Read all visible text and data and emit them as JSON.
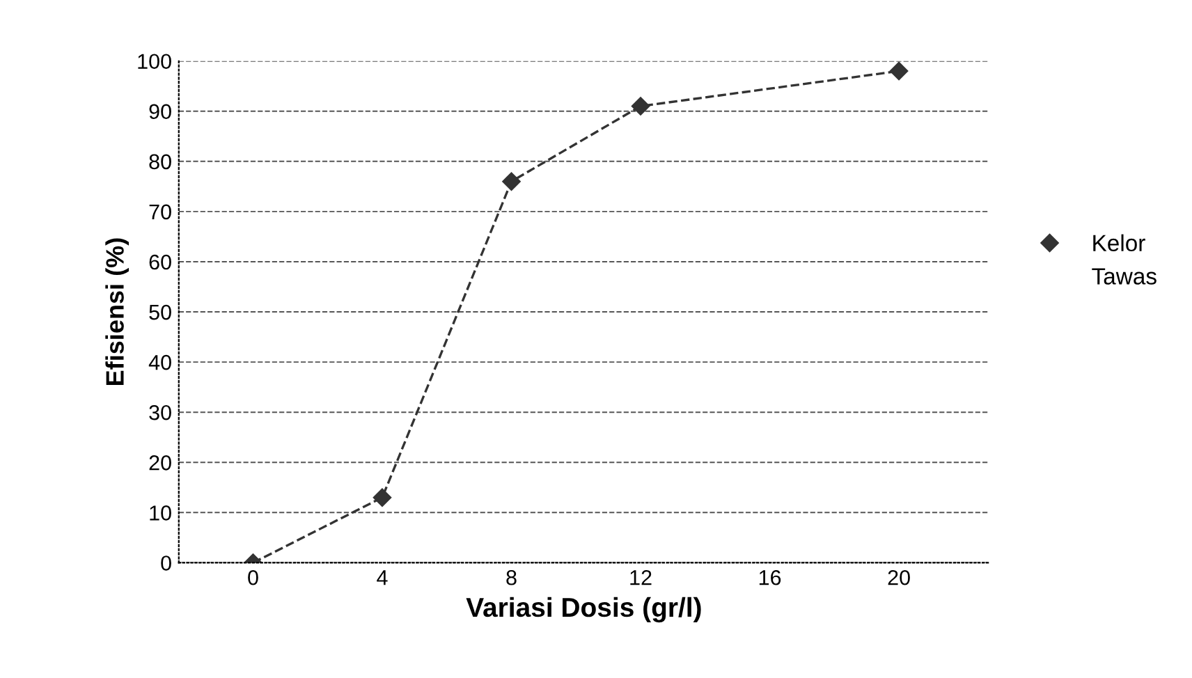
{
  "chart_data": {
    "type": "line",
    "xlabel": "Variasi Dosis (gr/l)",
    "ylabel": "Efisiensi (%)",
    "x": [
      0,
      4,
      8,
      12,
      20
    ],
    "series": [
      {
        "name": "Kelor",
        "color": "#333333",
        "values": [
          0,
          13,
          76,
          91,
          98
        ],
        "marker": "diamond"
      },
      {
        "name": "Tawas",
        "values": [
          null,
          null,
          null,
          null,
          null
        ],
        "marker": "none"
      }
    ],
    "xlim": [
      -2.3,
      22.8
    ],
    "xticks": [
      0,
      4,
      8,
      12,
      16,
      20
    ],
    "ylim": [
      0,
      100
    ],
    "yticks": [
      0,
      10,
      20,
      30,
      40,
      50,
      60,
      70,
      80,
      90,
      100
    ],
    "grid": "y",
    "legend": "right",
    "line_style": "dashed"
  }
}
